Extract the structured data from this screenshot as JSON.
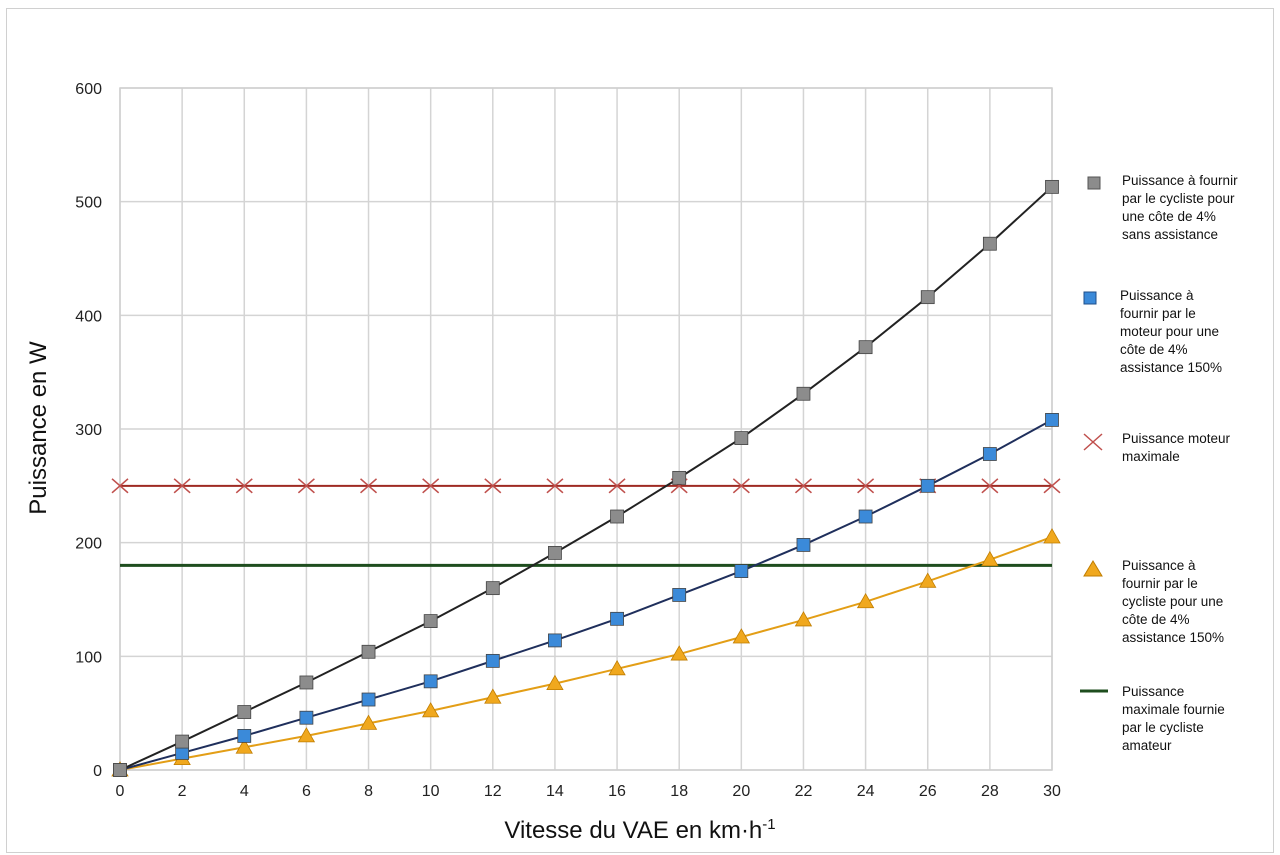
{
  "chart_data": {
    "type": "line",
    "xlabel": "Vitesse du VAE en km·h",
    "xlabel_sup": "-1",
    "ylabel": "Puissance en W",
    "xlim": [
      0,
      30
    ],
    "ylim": [
      0,
      600
    ],
    "x_ticks": [
      "0",
      "2",
      "4",
      "6",
      "8",
      "10",
      "12",
      "14",
      "16",
      "18",
      "20",
      "22",
      "24",
      "26",
      "28",
      "30"
    ],
    "y_ticks": [
      "0",
      "100",
      "200",
      "300",
      "400",
      "500",
      "600"
    ],
    "grid": true,
    "legend_position": "right",
    "x": [
      0,
      2,
      4,
      6,
      8,
      10,
      12,
      14,
      16,
      18,
      20,
      22,
      24,
      26,
      28,
      30
    ],
    "series": [
      {
        "name": "Puissance à fournir par le cycliste pour une côte de 4% sans assistance",
        "marker": "square",
        "color": "#222222",
        "marker_color": "#8c8c8c",
        "values": [
          0,
          25,
          51,
          77,
          104,
          131,
          160,
          191,
          223,
          257,
          292,
          331,
          372,
          416,
          463,
          513
        ]
      },
      {
        "name": "Puissance à fournir par le moteur pour une côte de 4% assistance 150%",
        "marker": "square",
        "color": "#1f2f5c",
        "marker_color": "#3b8ad9",
        "values": [
          0,
          15,
          30,
          46,
          62,
          78,
          96,
          114,
          133,
          154,
          175,
          198,
          223,
          250,
          278,
          308
        ]
      },
      {
        "name": "Puissance moteur maximale",
        "marker": "x",
        "color": "#9e2a22",
        "marker_color": "#c0504d",
        "values": [
          250,
          250,
          250,
          250,
          250,
          250,
          250,
          250,
          250,
          250,
          250,
          250,
          250,
          250,
          250,
          250
        ]
      },
      {
        "name": "Puissance à fournir par le cycliste pour une côte de 4% assistance 150%",
        "marker": "triangle",
        "color": "#e39e16",
        "marker_color": "#f0a81e",
        "values": [
          0,
          10,
          20,
          30,
          41,
          52,
          64,
          76,
          89,
          102,
          117,
          132,
          148,
          166,
          185,
          205
        ]
      },
      {
        "name": "Puissance maximale fournie par le cycliste amateur",
        "marker": "none",
        "color": "#1e4d1e",
        "values": [
          180,
          180,
          180,
          180,
          180,
          180,
          180,
          180,
          180,
          180,
          180,
          180,
          180,
          180,
          180,
          180
        ]
      }
    ]
  },
  "legend": [
    {
      "line1": "Puissance à fournir",
      "line2": "par le cycliste pour",
      "line3": "une côte de 4%",
      "line4": "sans assistance"
    },
    {
      "line1": "Puissance à",
      "line2": "fournir par le",
      "line3": "moteur pour une",
      "line4": "côte de 4%",
      "line5": "assistance 150%"
    },
    {
      "line1": "Puissance moteur",
      "line2": "maximale"
    },
    {
      "line1": "Puissance à",
      "line2": "fournir par le",
      "line3": "cycliste pour une",
      "line4": "côte de 4%",
      "line5": "assistance 150%"
    },
    {
      "line1": "Puissance",
      "line2": "maximale fournie",
      "line3": "par le cycliste",
      "line4": "amateur"
    }
  ]
}
